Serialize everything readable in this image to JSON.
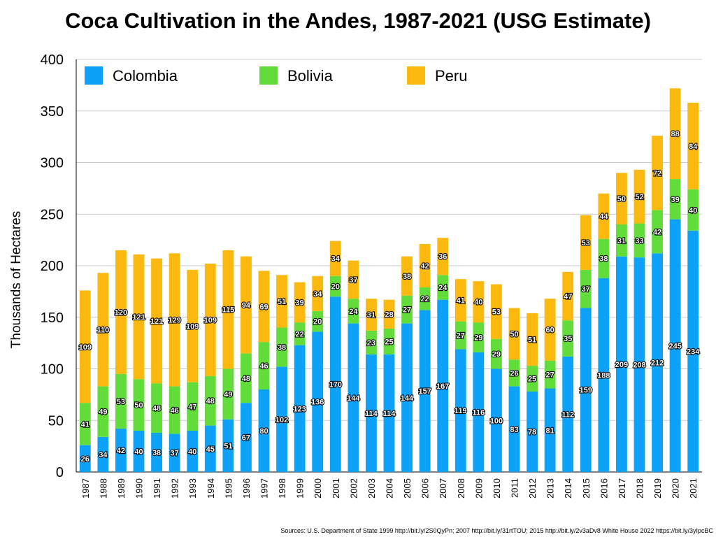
{
  "chart_data": {
    "type": "bar",
    "stacked": true,
    "title": "Coca Cultivation in the Andes, 1987-2021 (USG Estimate)",
    "xlabel": "",
    "ylabel": "Thousands of Hectares",
    "ylim": [
      0,
      400
    ],
    "yticks": [
      0,
      50,
      100,
      150,
      200,
      250,
      300,
      350,
      400
    ],
    "grid": true,
    "legend_position": "top",
    "categories": [
      "1987",
      "1988",
      "1989",
      "1990",
      "1991",
      "1992",
      "1993",
      "1994",
      "1995",
      "1996",
      "1997",
      "1998",
      "1999",
      "2000",
      "2001",
      "2002",
      "2003",
      "2004",
      "2005",
      "2006",
      "2007",
      "2008",
      "2009",
      "2010",
      "2011",
      "2012",
      "2013",
      "2014",
      "2015",
      "2016",
      "2017",
      "2018",
      "2019",
      "2020",
      "2021"
    ],
    "series": [
      {
        "name": "Colombia",
        "color": "#0DA2F7",
        "values": [
          26,
          34,
          42,
          40,
          38,
          37,
          40,
          45,
          51,
          67,
          80,
          102,
          123,
          136,
          170,
          144,
          114,
          114,
          144,
          157,
          167,
          119,
          116,
          100,
          83,
          78,
          81,
          112,
          159,
          188,
          209,
          208,
          212,
          245,
          234
        ]
      },
      {
        "name": "Bolivia",
        "color": "#62DC3B",
        "values": [
          41,
          49,
          53,
          50,
          48,
          46,
          47,
          48,
          49,
          48,
          46,
          38,
          22,
          20,
          20,
          24,
          23,
          25,
          27,
          22,
          24,
          27,
          29,
          29,
          26,
          25,
          27,
          35,
          37,
          38,
          31,
          33,
          42,
          39,
          40
        ]
      },
      {
        "name": "Peru",
        "color": "#FBB80F",
        "values": [
          109,
          110,
          120,
          121,
          121,
          129,
          109,
          109,
          115,
          94,
          69,
          51,
          39,
          34,
          34,
          37,
          31,
          28,
          38,
          42,
          36,
          41,
          40,
          53,
          50,
          51,
          60,
          47,
          53,
          44,
          50,
          52,
          72,
          88,
          84
        ]
      }
    ]
  },
  "sources": "Sources: U.S. Department of State 1999 http://bit.ly/2S0QyPn; 2007 http://bit.ly/31rtTOU; 2015 http://bit.ly/2v3aDv8 White House 2022 https://bit.ly/3yIpcBC"
}
